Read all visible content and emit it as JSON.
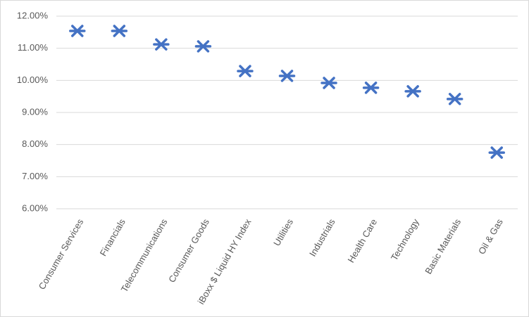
{
  "chart_data": {
    "type": "scatter",
    "categories": [
      "Consumer Services",
      "Financials",
      "Telecommunications",
      "Consumer Goods",
      "iBoxx $ Liquid HY Index",
      "Utilities",
      "Industrials",
      "Health Care",
      "Technology",
      "Basic Materials",
      "Oil & Gas"
    ],
    "values": [
      11.54,
      11.54,
      11.12,
      11.06,
      10.29,
      10.14,
      9.92,
      9.77,
      9.66,
      9.42,
      7.75
    ],
    "color": "#4472c4",
    "ylim": [
      6,
      12
    ],
    "yticks": [
      {
        "value": 6,
        "label": "6.00%"
      },
      {
        "value": 7,
        "label": "7.00%"
      },
      {
        "value": 8,
        "label": "8.00%"
      },
      {
        "value": 9,
        "label": "9.00%"
      },
      {
        "value": 10,
        "label": "10.00%"
      },
      {
        "value": 11,
        "label": "11.00%"
      },
      {
        "value": 12,
        "label": "12.00%"
      }
    ],
    "grid": true
  }
}
